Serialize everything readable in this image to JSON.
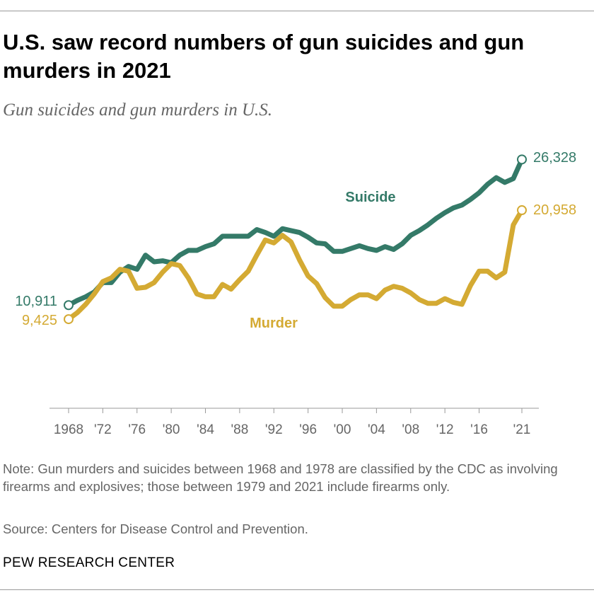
{
  "title": "U.S. saw record numbers of gun suicides and gun murders in 2021",
  "subtitle": "Gun suicides and gun murders in U.S.",
  "note": "Note: Gun murders and suicides between 1968 and 1978 are classified by the CDC as involving firearms and explosives; those between 1979 and 2021 include firearms only.",
  "source": "Source: Centers for Disease Control and Prevention.",
  "brand": "PEW RESEARCH CENTER",
  "chart_data": {
    "type": "line",
    "title": "U.S. saw record numbers of gun suicides and gun murders in 2021",
    "subtitle": "Gun suicides and gun murders in U.S.",
    "x": [
      1968,
      1969,
      1970,
      1971,
      1972,
      1973,
      1974,
      1975,
      1976,
      1977,
      1978,
      1979,
      1980,
      1981,
      1982,
      1983,
      1984,
      1985,
      1986,
      1987,
      1988,
      1989,
      1990,
      1991,
      1992,
      1993,
      1994,
      1995,
      1996,
      1997,
      1998,
      1999,
      2000,
      2001,
      2002,
      2003,
      2004,
      2005,
      2006,
      2007,
      2008,
      2009,
      2010,
      2011,
      2012,
      2013,
      2014,
      2015,
      2016,
      2017,
      2018,
      2019,
      2020,
      2021
    ],
    "xlim": [
      1966,
      2023
    ],
    "ylim": [
      0,
      28000
    ],
    "grid": false,
    "x_ticks": [
      {
        "year": 1968,
        "label": "1968"
      },
      {
        "year": 1972,
        "label": "'72"
      },
      {
        "year": 1976,
        "label": "'76"
      },
      {
        "year": 1980,
        "label": "'80"
      },
      {
        "year": 1984,
        "label": "'84"
      },
      {
        "year": 1988,
        "label": "'88"
      },
      {
        "year": 1992,
        "label": "'92"
      },
      {
        "year": 1996,
        "label": "'96"
      },
      {
        "year": 2000,
        "label": "'00"
      },
      {
        "year": 2004,
        "label": "'04"
      },
      {
        "year": 2008,
        "label": "'08"
      },
      {
        "year": 2012,
        "label": "'12"
      },
      {
        "year": 2016,
        "label": "'16"
      },
      {
        "year": 2021,
        "label": "'21"
      }
    ],
    "series": [
      {
        "name": "Suicide",
        "color": "#347a68",
        "start_label": "10,911",
        "end_label": "26,328",
        "values": [
          10911,
          11400,
          11800,
          12300,
          13300,
          13300,
          14400,
          15000,
          14700,
          16200,
          15500,
          15600,
          15400,
          16200,
          16700,
          16700,
          17100,
          17400,
          18200,
          18200,
          18200,
          18200,
          18900,
          18600,
          18200,
          19000,
          18800,
          18600,
          18100,
          17500,
          17400,
          16600,
          16600,
          16900,
          17200,
          16900,
          16700,
          17100,
          16800,
          17400,
          18300,
          18800,
          19400,
          20100,
          20700,
          21200,
          21500,
          22100,
          22800,
          23700,
          24400,
          23900,
          24300,
          26328
        ]
      },
      {
        "name": "Murder",
        "color": "#d4aa33",
        "start_label": "9,425",
        "end_label": "20,958",
        "values": [
          9425,
          10100,
          11000,
          12100,
          13400,
          13800,
          14700,
          14500,
          12700,
          12800,
          13300,
          14400,
          15300,
          15100,
          13800,
          12100,
          11800,
          11800,
          13100,
          12600,
          13600,
          14500,
          16200,
          17800,
          17500,
          18300,
          17600,
          15700,
          14000,
          13200,
          11700,
          10800,
          10800,
          11500,
          12000,
          12000,
          11600,
          12500,
          12900,
          12700,
          12200,
          11500,
          11100,
          11100,
          11600,
          11200,
          11000,
          13000,
          14500,
          14500,
          13800,
          14400,
          19400,
          20958
        ]
      }
    ]
  }
}
